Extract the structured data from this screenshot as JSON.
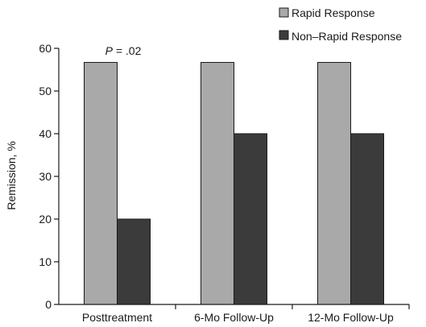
{
  "chart_data": {
    "type": "bar",
    "categories": [
      "Posttreatment",
      "6-Mo Follow-Up",
      "12-Mo Follow-Up"
    ],
    "series": [
      {
        "name": "Rapid Response",
        "values": [
          56.7,
          56.7,
          56.7
        ],
        "color": "#a9a9a9"
      },
      {
        "name": "Non–Rapid Response",
        "values": [
          20,
          40,
          40
        ],
        "color": "#3b3b3b"
      }
    ],
    "xlabel": "",
    "ylabel": "Remission, %",
    "ylim": [
      0,
      60
    ],
    "yticks": [
      0,
      10,
      20,
      30,
      40,
      50,
      60
    ],
    "grid": false,
    "legend_position": "top-right",
    "annotations": [
      {
        "category": "Posttreatment",
        "p_label": "P",
        "p_value": " = .02"
      }
    ]
  }
}
